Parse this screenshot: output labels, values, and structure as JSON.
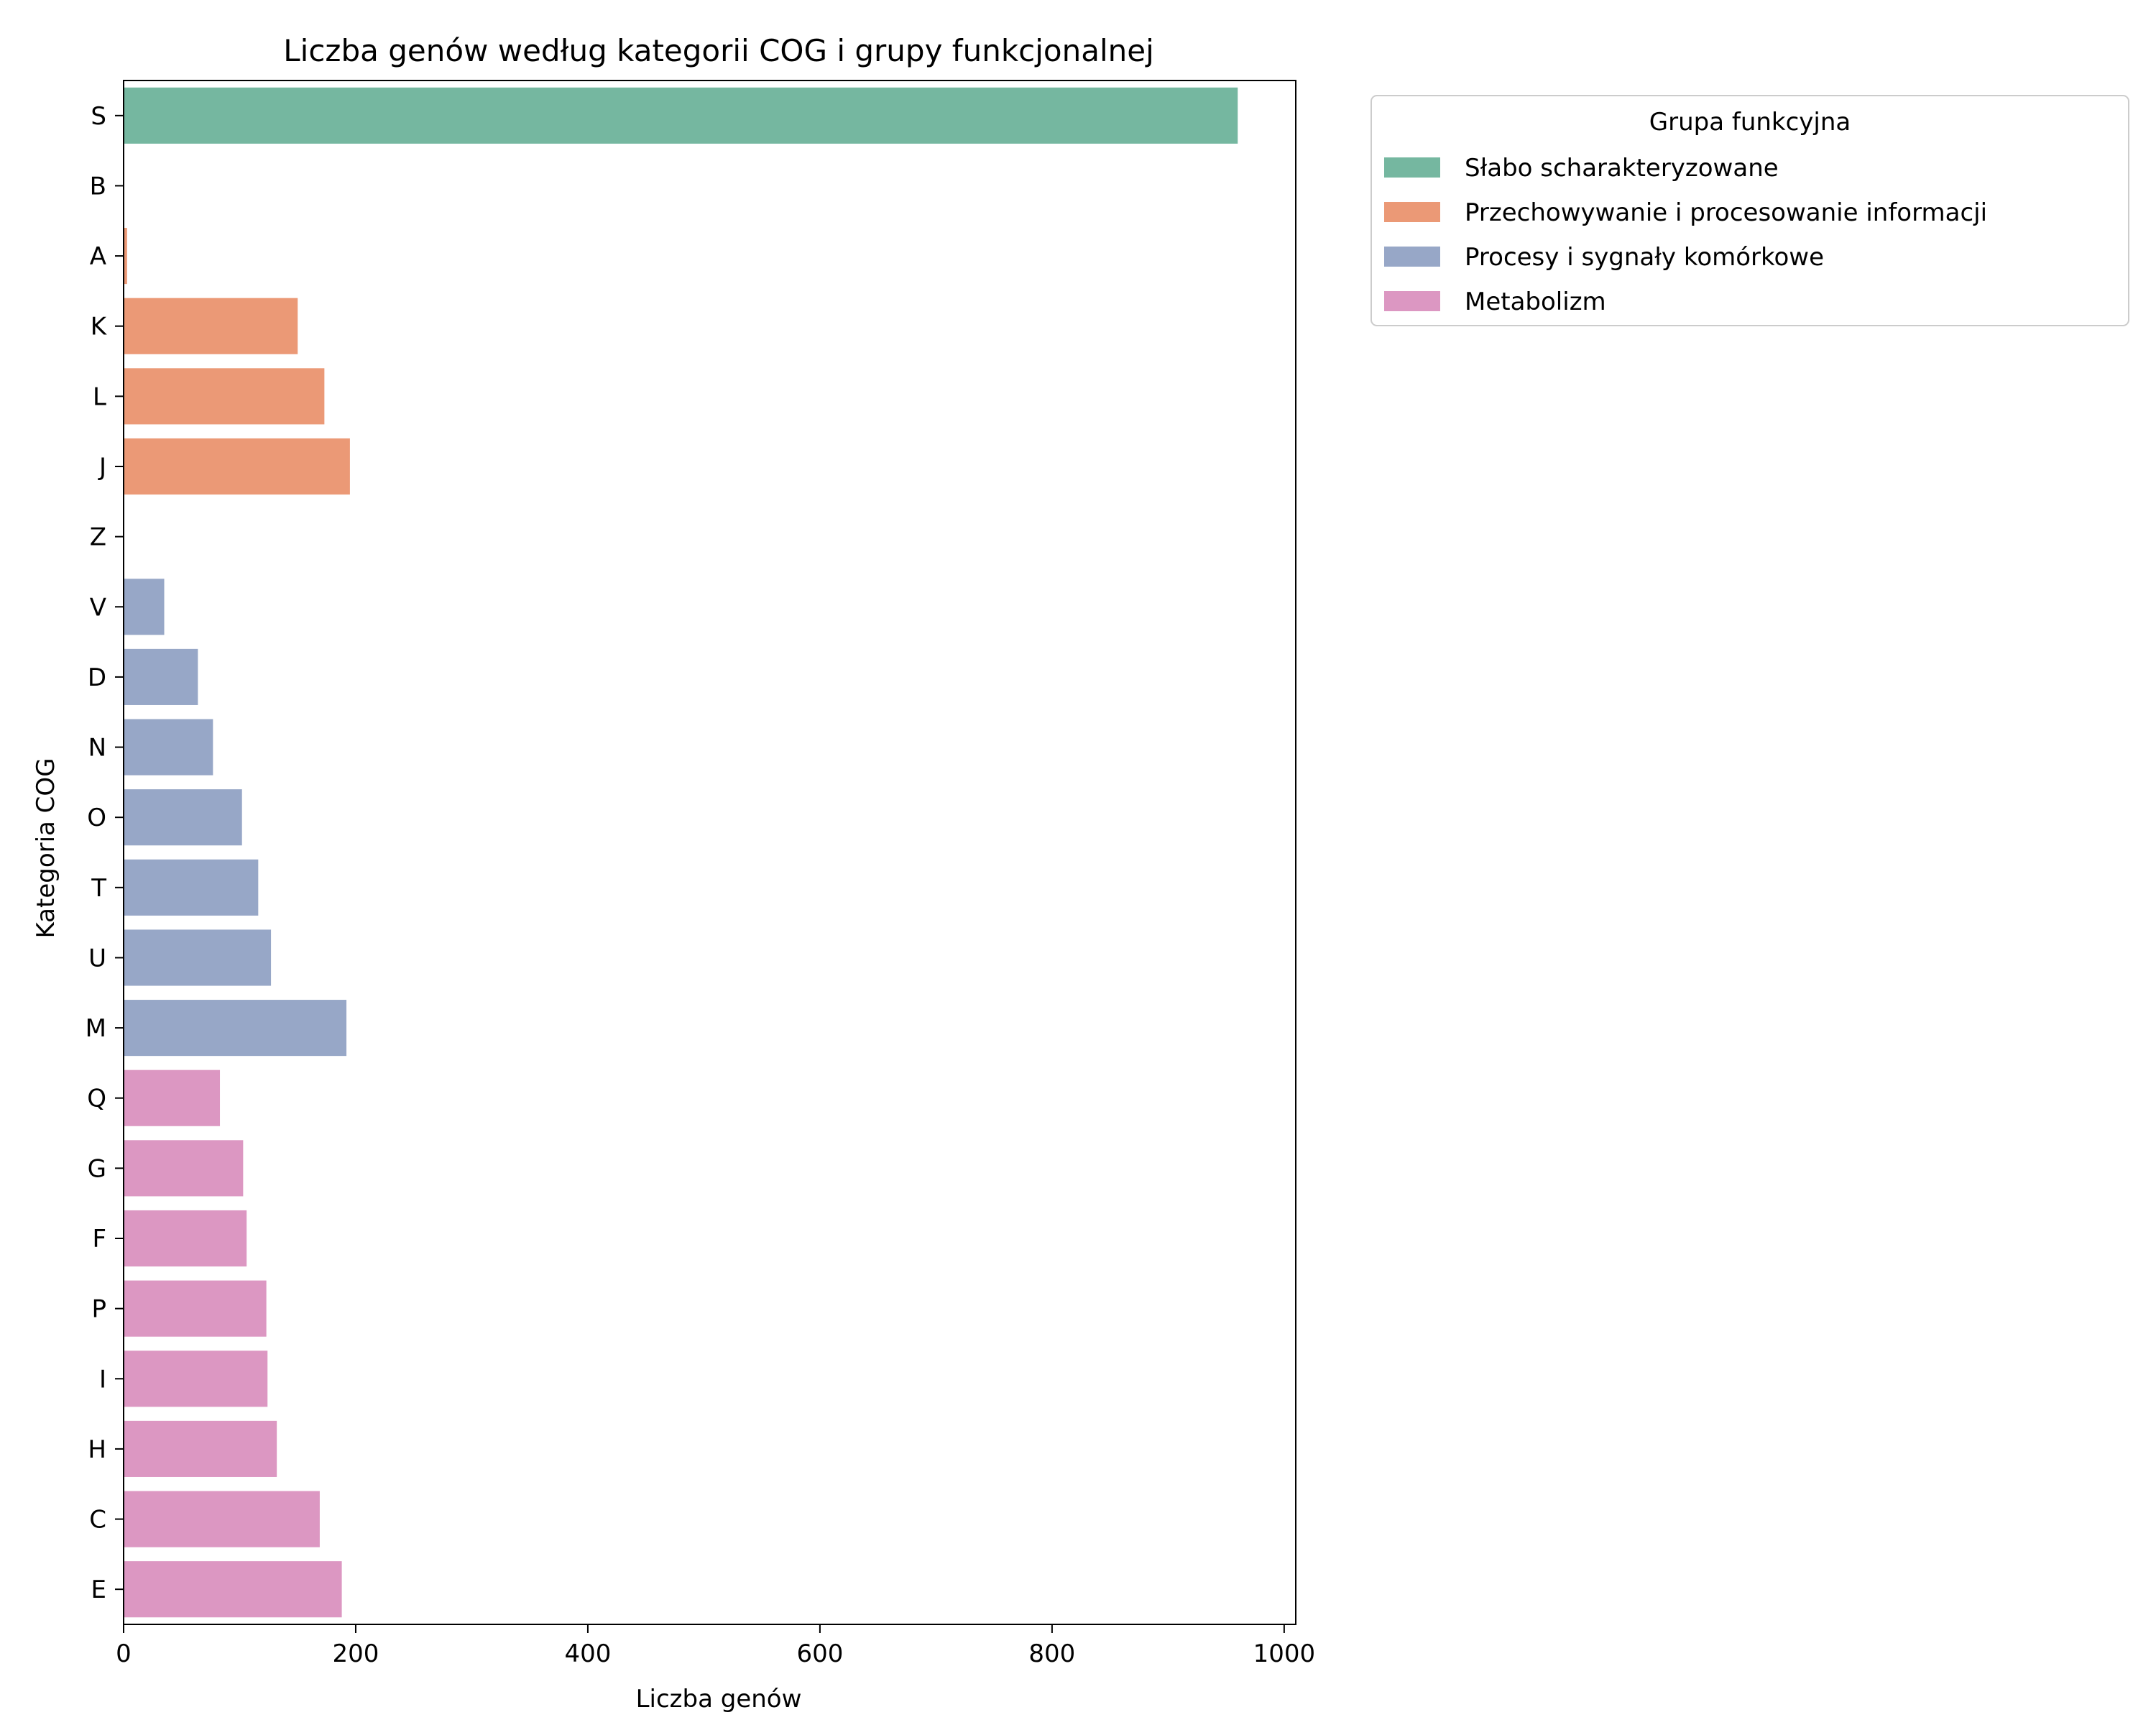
{
  "chart_data": {
    "type": "bar",
    "orientation": "horizontal",
    "title": "Liczba genów według kategorii COG i grupy funkcjonalnej",
    "xlabel": "Liczba genów",
    "ylabel": "Kategoria COG",
    "xlim": [
      0,
      1010
    ],
    "xticks": [
      0,
      200,
      400,
      600,
      800,
      1000
    ],
    "grid": false,
    "categories": [
      "S",
      "B",
      "A",
      "K",
      "L",
      "J",
      "Z",
      "V",
      "D",
      "N",
      "O",
      "T",
      "U",
      "M",
      "Q",
      "G",
      "F",
      "P",
      "I",
      "H",
      "C",
      "E"
    ],
    "values": [
      960,
      0,
      3,
      150,
      173,
      195,
      0,
      35,
      64,
      77,
      102,
      116,
      127,
      192,
      83,
      103,
      106,
      123,
      124,
      132,
      169,
      188
    ],
    "groups": [
      0,
      1,
      1,
      1,
      1,
      1,
      2,
      2,
      2,
      2,
      2,
      2,
      2,
      2,
      3,
      3,
      3,
      3,
      3,
      3,
      3,
      3
    ],
    "legend": {
      "title": "Grupa funkcyjna",
      "placement": "outside-right-top",
      "entries": [
        {
          "name": "Słabo scharakteryzowane",
          "color": "#75b7a0"
        },
        {
          "name": "Przechowywanie i procesowanie informacji",
          "color": "#eb9976"
        },
        {
          "name": "Procesy i sygnały komórkowe",
          "color": "#97a7c7"
        },
        {
          "name": "Metabolizm",
          "color": "#dc97c2"
        }
      ]
    }
  }
}
